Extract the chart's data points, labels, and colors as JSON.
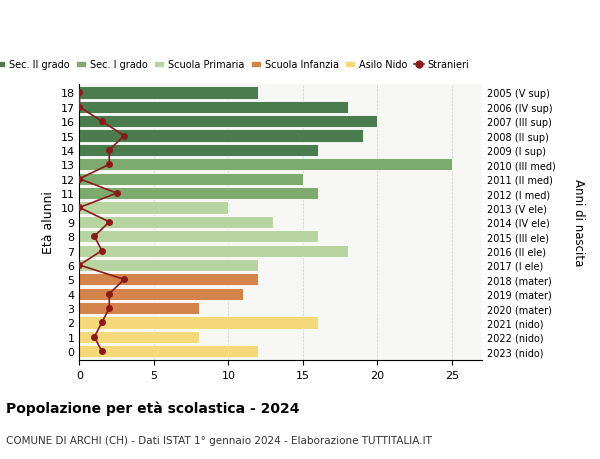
{
  "ages": [
    0,
    1,
    2,
    3,
    4,
    5,
    6,
    7,
    8,
    9,
    10,
    11,
    12,
    13,
    14,
    15,
    16,
    17,
    18
  ],
  "right_labels_by_age": {
    "0": "2023 (nido)",
    "1": "2022 (nido)",
    "2": "2021 (nido)",
    "3": "2020 (mater)",
    "4": "2019 (mater)",
    "5": "2018 (mater)",
    "6": "2017 (I ele)",
    "7": "2016 (II ele)",
    "8": "2015 (III ele)",
    "9": "2014 (IV ele)",
    "10": "2013 (V ele)",
    "11": "2012 (I med)",
    "12": "2011 (II med)",
    "13": "2010 (III med)",
    "14": "2009 (I sup)",
    "15": "2008 (II sup)",
    "16": "2007 (III sup)",
    "17": "2006 (IV sup)",
    "18": "2005 (V sup)"
  },
  "bar_values_by_age": {
    "0": 12,
    "1": 8,
    "2": 16,
    "3": 8,
    "4": 11,
    "5": 12,
    "6": 12,
    "7": 18,
    "8": 16,
    "9": 13,
    "10": 10,
    "11": 16,
    "12": 15,
    "13": 25,
    "14": 16,
    "15": 19,
    "16": 20,
    "17": 18,
    "18": 12
  },
  "bar_colors_by_age": {
    "0": "#f5d87a",
    "1": "#f5d87a",
    "2": "#f5d87a",
    "3": "#d4844a",
    "4": "#d4844a",
    "5": "#d4844a",
    "6": "#b8d4a0",
    "7": "#b8d4a0",
    "8": "#b8d4a0",
    "9": "#b8d4a0",
    "10": "#b8d4a0",
    "11": "#7dab6e",
    "12": "#7dab6e",
    "13": "#7dab6e",
    "14": "#4a7c4e",
    "15": "#4a7c4e",
    "16": "#4a7c4e",
    "17": "#4a7c4e",
    "18": "#4a7c4e"
  },
  "stranieri_by_age": {
    "0": 1.5,
    "1": 1.0,
    "2": 1.5,
    "3": 2.0,
    "4": 2.0,
    "5": 3.0,
    "6": 0.0,
    "7": 1.5,
    "8": 1.0,
    "9": 2.0,
    "10": 0.0,
    "11": 2.5,
    "12": 0.0,
    "13": 2.0,
    "14": 2.0,
    "15": 3.0,
    "16": 1.5,
    "17": 0.0,
    "18": 0.0
  },
  "line_color": "#8b1a1a",
  "title": "Popolazione per età scolastica - 2024",
  "subtitle": "COMUNE DI ARCHI (CH) - Dati ISTAT 1° gennaio 2024 - Elaborazione TUTTITALIA.IT",
  "ylabel": "Età alunni",
  "right_ylabel": "Anni di nascita",
  "xlim": [
    0,
    27
  ],
  "xticks": [
    0,
    5,
    10,
    15,
    20,
    25
  ],
  "legend_labels": [
    "Sec. II grado",
    "Sec. I grado",
    "Scuola Primaria",
    "Scuola Infanzia",
    "Asilo Nido",
    "Stranieri"
  ],
  "legend_colors": [
    "#4a7c4e",
    "#7dab6e",
    "#b8d4a0",
    "#d4844a",
    "#f5d87a",
    "#8b1a1a"
  ],
  "bg_color": "#f7f7f5"
}
